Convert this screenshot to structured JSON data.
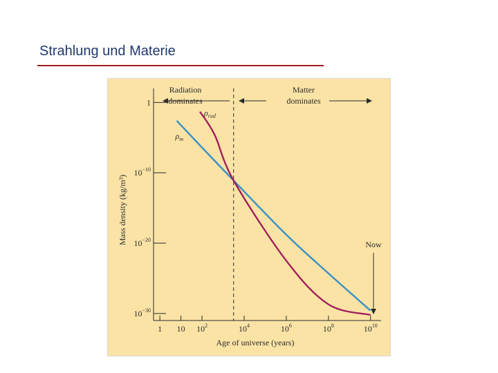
{
  "slide": {
    "title": "Strahlung und Materie"
  },
  "chart_data": {
    "type": "line",
    "xlabel": "Age of universe (years)",
    "ylabel": "Mass density (kg/m³)",
    "x_scale": "log",
    "y_scale": "log",
    "xlim_log10": [
      -0.3,
      10.5
    ],
    "ylim_log10": [
      -31,
      2
    ],
    "x_ticks": [
      {
        "log": 0,
        "label": "1"
      },
      {
        "log": 1,
        "label": "10"
      },
      {
        "log": 2,
        "base": "10",
        "exp": "2"
      },
      {
        "log": 4,
        "base": "10",
        "exp": "4"
      },
      {
        "log": 6,
        "base": "10",
        "exp": "6"
      },
      {
        "log": 8,
        "base": "10",
        "exp": "8"
      },
      {
        "log": 10,
        "base": "10",
        "exp": "10"
      }
    ],
    "y_ticks": [
      {
        "log": 0,
        "label": "1"
      },
      {
        "log": -10,
        "base": "10",
        "exp": "−10"
      },
      {
        "log": -20,
        "base": "10",
        "exp": "−20"
      },
      {
        "log": -30,
        "base": "10",
        "exp": "−30"
      }
    ],
    "series": [
      {
        "name": "ρm",
        "color": "#3a8fc4",
        "points_log10": [
          [
            0.8,
            -2.6
          ],
          [
            2,
            -6.4
          ],
          [
            3.5,
            -11.1
          ],
          [
            6,
            -18.8
          ],
          [
            8,
            -24.3
          ],
          [
            10,
            -29.6
          ]
        ]
      },
      {
        "name": "ρrad",
        "color": "#a0205a",
        "points_log10": [
          [
            1.9,
            -1.3
          ],
          [
            2.6,
            -4.6
          ],
          [
            3.5,
            -11.1
          ],
          [
            6,
            -22.5
          ],
          [
            8,
            -28.7
          ],
          [
            10,
            -30.2
          ]
        ]
      }
    ],
    "divider": {
      "x_log10": 3.5,
      "style": "dashed"
    },
    "annotations": {
      "left_region": [
        "Radiation",
        "dominates"
      ],
      "right_region": [
        "Matter",
        "dominates"
      ],
      "now_label": "Now"
    }
  }
}
